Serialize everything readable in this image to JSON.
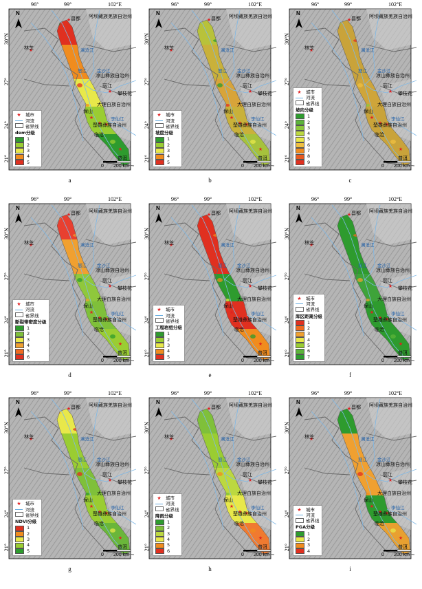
{
  "longitude_labels": [
    "96°",
    "99°",
    "102°E"
  ],
  "latitude_labels": [
    "30°N",
    "27°",
    "24°",
    "21°"
  ],
  "places": {
    "changdu": "昌都",
    "linzhi": "林芝",
    "aba": "阿坝藏族羌族自治州",
    "liangshan": "凉山彝族自治州",
    "lijiang": "丽江",
    "panzhihua": "攀枝花",
    "dali": "大理白族自治州",
    "baoshan": "保山",
    "chuxiong": "楚雄彝族自治州",
    "lincang": "临沧",
    "puer": "普洱"
  },
  "rivers": {
    "lancang": "澜沧江",
    "nu": "怒江",
    "jinsha": "金沙江",
    "lixian": "李仙江"
  },
  "legend_common": {
    "city": "城市",
    "river": "河流",
    "province": "省界线"
  },
  "scale": {
    "zero": "0",
    "end": "200 km"
  },
  "north": "N",
  "panels": [
    {
      "label": "a",
      "title": "dem分级",
      "classes": [
        "1",
        "2",
        "3",
        "4",
        "5"
      ],
      "colors": [
        "#2e9b2e",
        "#9acd32",
        "#e8e84a",
        "#f08c1e",
        "#e03020"
      ],
      "fill": [
        "#e03020",
        "#f08c1e",
        "#e8e84a",
        "#9acd32",
        "#2e9b2e"
      ]
    },
    {
      "label": "b",
      "title": "坡度分级",
      "classes": [
        "1",
        "2",
        "3",
        "4",
        "5"
      ],
      "colors": [
        "#2e9b2e",
        "#9acd32",
        "#e8e84a",
        "#f08c1e",
        "#e03020"
      ],
      "fill": [
        "#b8c23a",
        "#c9b13a",
        "#d8a43a",
        "#c9b13a",
        "#a6c23c"
      ]
    },
    {
      "label": "c",
      "title": "坡向分级",
      "classes": [
        "1",
        "2",
        "3",
        "4",
        "5",
        "6",
        "7",
        "8",
        "9"
      ],
      "colors": [
        "#2e9b2e",
        "#5cb43a",
        "#8cc83c",
        "#bcd840",
        "#e8e84a",
        "#f0c040",
        "#f08c1e",
        "#e85a20",
        "#e03020"
      ],
      "fill": [
        "#c9a33a",
        "#c9a33a",
        "#cfa53a",
        "#c9a33a",
        "#c9a33a"
      ]
    },
    {
      "label": "d",
      "title": "断裂带密度分级",
      "classes": [
        "1",
        "2",
        "3",
        "4",
        "5",
        "6"
      ],
      "colors": [
        "#2e9b2e",
        "#7fc03a",
        "#e8e84a",
        "#f0a030",
        "#f06a20",
        "#e03020"
      ],
      "fill": [
        "#e84030",
        "#f0a030",
        "#8fc83c",
        "#7fc03a",
        "#9acd32"
      ]
    },
    {
      "label": "e",
      "title": "工程岩组分级",
      "classes": [
        "1",
        "2",
        "3",
        "4",
        "5"
      ],
      "colors": [
        "#2e9b2e",
        "#9acd32",
        "#e8e84a",
        "#f08c1e",
        "#e03020"
      ],
      "fill": [
        "#e03020",
        "#e03020",
        "#2e9b2e",
        "#e03020",
        "#f08c1e"
      ]
    },
    {
      "label": "f",
      "title": "库区距离分级",
      "classes": [
        "1",
        "2",
        "3",
        "4",
        "5",
        "6",
        "7"
      ],
      "colors": [
        "#e03020",
        "#f06a20",
        "#f0a030",
        "#e8e84a",
        "#9acd32",
        "#5cb43a",
        "#2e9b2e"
      ],
      "fill": [
        "#2e9b2e",
        "#2e9b2e",
        "#3ea33a",
        "#2e9b2e",
        "#2e9b2e"
      ]
    },
    {
      "label": "g",
      "title": "NDVI分级",
      "classes": [
        "1",
        "2",
        "3",
        "4",
        "5"
      ],
      "colors": [
        "#e03020",
        "#f08c1e",
        "#e8e84a",
        "#9acd32",
        "#2e9b2e"
      ],
      "fill": [
        "#e8e84a",
        "#9acd32",
        "#7fc03a",
        "#9acd32",
        "#6ab63a"
      ]
    },
    {
      "label": "h",
      "title": "降雨分级",
      "classes": [
        "1",
        "2",
        "3",
        "4",
        "5",
        "6"
      ],
      "colors": [
        "#2e9b2e",
        "#7fc03a",
        "#bcd840",
        "#e8e84a",
        "#f08c1e",
        "#e03020"
      ],
      "fill": [
        "#7fc03a",
        "#9acd32",
        "#bcd840",
        "#e8e84a",
        "#f07a30"
      ]
    },
    {
      "label": "i",
      "title": "PGA分级",
      "classes": [
        "1",
        "2",
        "3",
        "4"
      ],
      "colors": [
        "#2e9b2e",
        "#e8e84a",
        "#f08c1e",
        "#e03020"
      ],
      "fill": [
        "#2e9b2e",
        "#f0a030",
        "#f0a030",
        "#2e9b2e",
        "#e8a030"
      ]
    }
  ]
}
